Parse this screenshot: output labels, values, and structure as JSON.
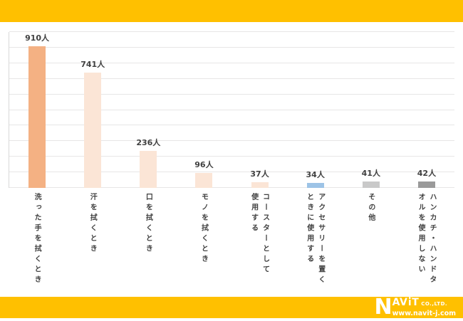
{
  "colors": {
    "banner_yellow": "#ffc000",
    "grid_gray": "#e7e6e6",
    "axis_gray": "#d9d9d9",
    "label_gray": "#404040",
    "logo_white": "#ffffff"
  },
  "chart_data": {
    "type": "bar",
    "title": "",
    "xlabel": "",
    "ylabel": "",
    "unit_suffix": "人",
    "categories": [
      "洗った手を拭くとき",
      "汗を拭くとき",
      "口を拭くとき",
      "モノを拭くとき",
      "コースターとして使用する",
      "アクセサリーを置くときに使用する",
      "その他",
      "ハンカチ・ハンドタオルを使用しない"
    ],
    "category_lines": [
      [
        "洗った手を拭くとき"
      ],
      [
        "汗を拭くとき"
      ],
      [
        "口を拭くとき"
      ],
      [
        "モノを拭くとき"
      ],
      [
        "コースターとして",
        "使用する"
      ],
      [
        "アクセサリーを置く",
        "ときに使用する"
      ],
      [
        "その他"
      ],
      [
        "ハンカチ・ハンドタ",
        "オルを使用しない"
      ]
    ],
    "values": [
      910,
      741,
      236,
      96,
      37,
      34,
      41,
      42
    ],
    "value_labels": [
      "910人",
      "741人",
      "236人",
      "96人",
      "37人",
      "34人",
      "41人",
      "42人"
    ],
    "bar_colors": [
      "#f4b183",
      "#fbe5d6",
      "#fbe5d6",
      "#fbe5d6",
      "#fbe5d6",
      "#9dc3e6",
      "#c9c9c9",
      "#9a9a9a"
    ],
    "ylim": [
      0,
      1000
    ],
    "gridline_step": 100,
    "grid": "on",
    "legend": "none"
  },
  "footer": {
    "logo_n": "N",
    "logo_av": "AV",
    "logo_i": "i",
    "logo_t": "T",
    "logo_co": "CO.,LTD.",
    "logo_url": "www.navit-j.com"
  }
}
